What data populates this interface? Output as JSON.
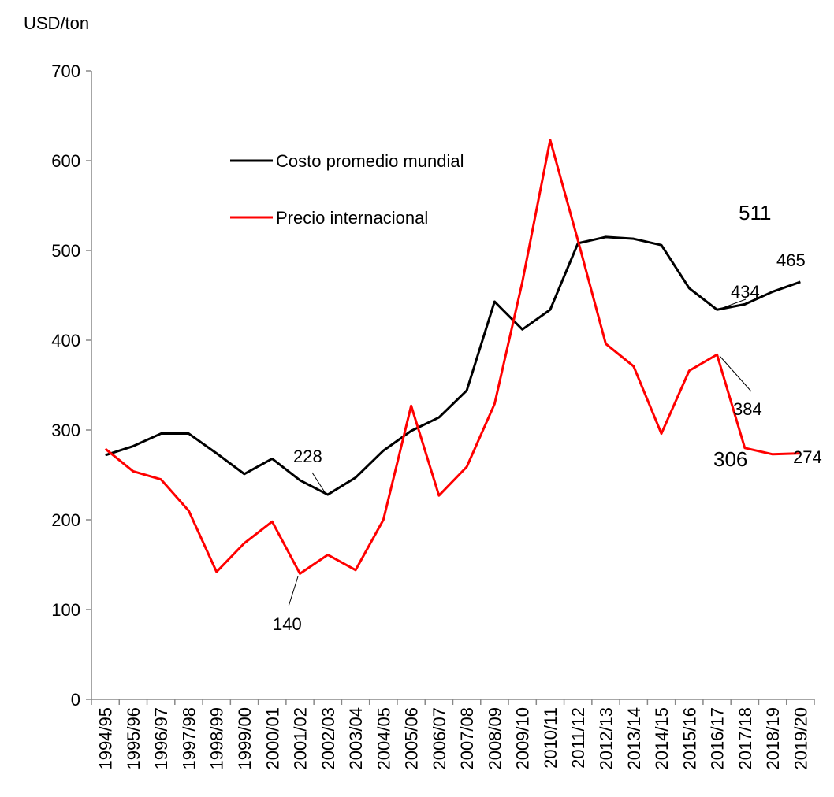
{
  "chart_data": {
    "type": "line",
    "y_axis_label": "USD/ton",
    "categories": [
      "1994/95",
      "1995/96",
      "1996/97",
      "1997/98",
      "1998/99",
      "1999/00",
      "2000/01",
      "2001/02",
      "2002/03",
      "2003/04",
      "2004/05",
      "2005/06",
      "2006/07",
      "2007/08",
      "2008/09",
      "2009/10",
      "2010/11",
      "2011/12",
      "2012/13",
      "2013/14",
      "2014/15",
      "2015/16",
      "2016/17",
      "2017/18",
      "2018/19",
      "2019/20"
    ],
    "series": [
      {
        "name": "Costo promedio mundial",
        "color": "#000000",
        "values": [
          272,
          282,
          296,
          296,
          274,
          251,
          268,
          244,
          228,
          247,
          277,
          299,
          314,
          344,
          443,
          412,
          434,
          508,
          515,
          513,
          506,
          458,
          434,
          440,
          454,
          465
        ]
      },
      {
        "name": "Precio internacional",
        "color": "#ff0000",
        "values": [
          279,
          254,
          245,
          210,
          142,
          174,
          198,
          140,
          161,
          144,
          200,
          327,
          227,
          259,
          329,
          465,
          623,
          511,
          396,
          371,
          296,
          366,
          384,
          280,
          273,
          274
        ]
      }
    ],
    "annotations": [
      {
        "text": "228",
        "color": "#000000"
      },
      {
        "text": "140",
        "color": "#000000"
      },
      {
        "text": "434",
        "color": "#000000"
      },
      {
        "text": "465",
        "color": "#000000"
      },
      {
        "text": "384",
        "color": "#000000"
      },
      {
        "text": "274",
        "color": "#000000"
      },
      {
        "text": "511",
        "color": "#3d4f4f"
      },
      {
        "text": "306",
        "color": "#c0262d"
      }
    ],
    "ylim": [
      0,
      700
    ],
    "yticks": [
      0,
      100,
      200,
      300,
      400,
      500,
      600,
      700
    ],
    "legend": "upper left"
  }
}
